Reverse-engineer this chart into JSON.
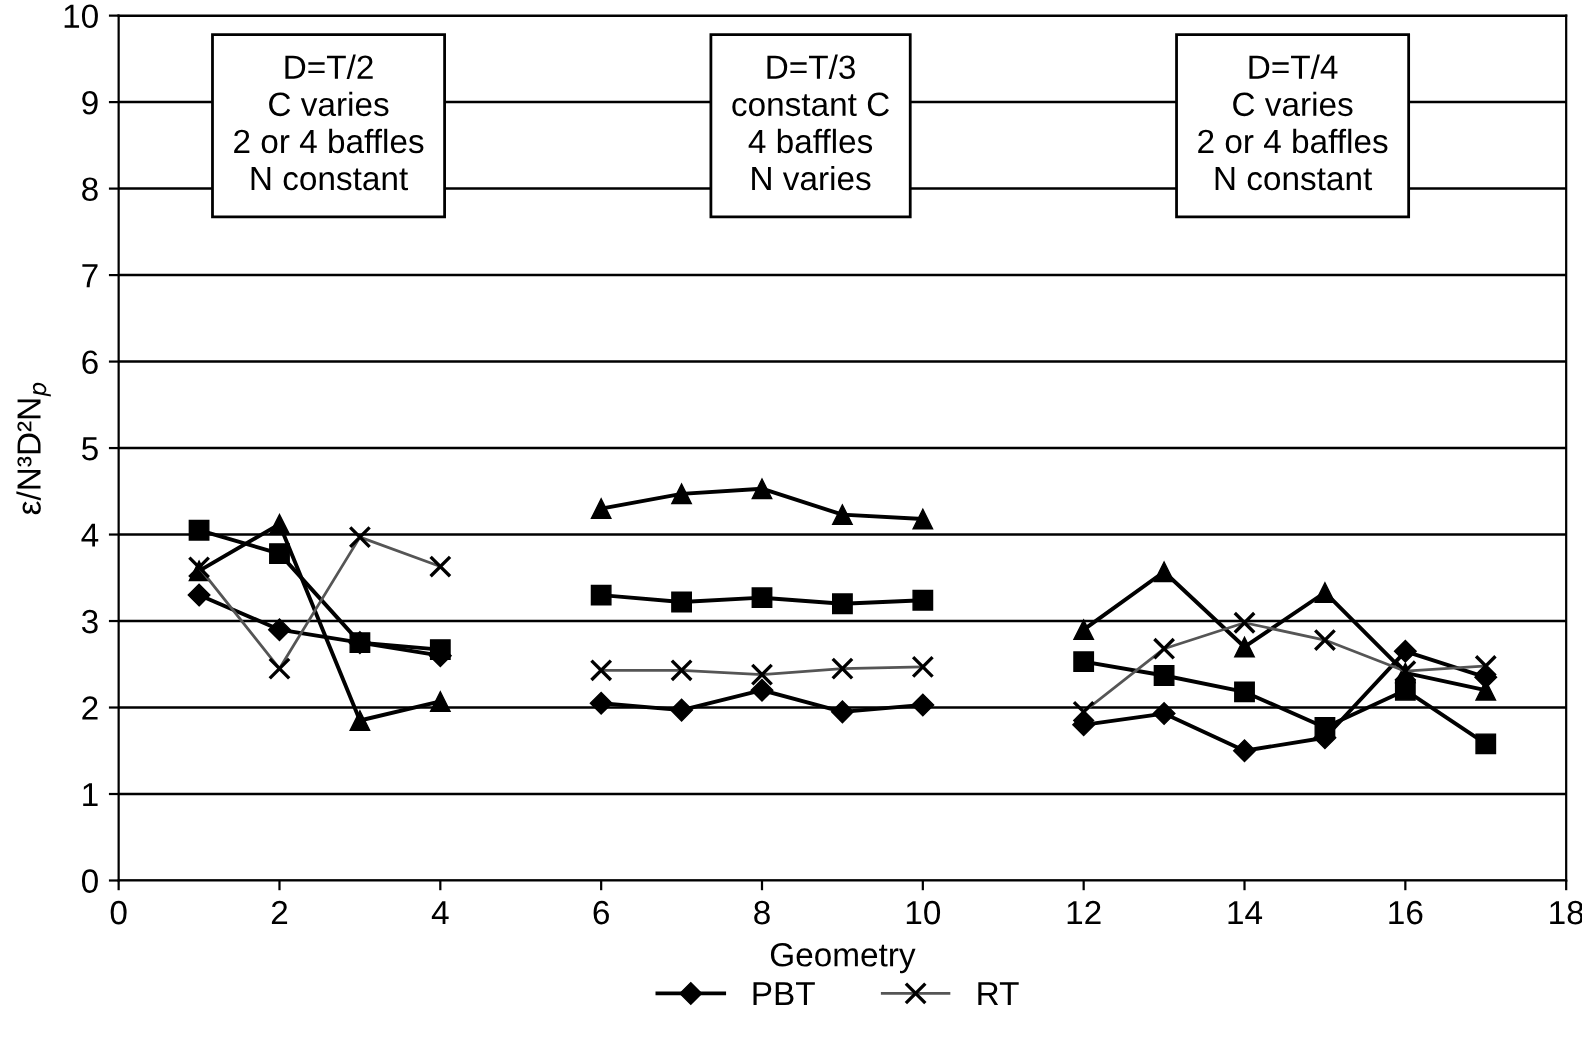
{
  "chart_data": {
    "type": "line",
    "xlabel": "Geometry",
    "ylabel": "ε/N³D²N$_{p}$",
    "x": [
      1,
      2,
      3,
      4,
      5,
      6,
      7,
      8,
      9,
      10,
      11,
      12,
      13,
      14,
      15,
      16,
      17
    ],
    "series": [
      {
        "name": "PBT",
        "color": "#000000",
        "marker": "diamond",
        "values": [
          3.3,
          2.9,
          2.75,
          2.6,
          null,
          2.05,
          1.97,
          2.2,
          1.95,
          2.03,
          null,
          1.8,
          1.93,
          1.5,
          1.65,
          2.65,
          2.35
        ]
      },
      {
        "color": "#000000",
        "marker": "square",
        "values": [
          4.05,
          3.78,
          2.75,
          2.67,
          null,
          3.3,
          3.22,
          3.27,
          3.2,
          3.24,
          null,
          2.53,
          2.37,
          2.18,
          1.77,
          2.2,
          1.58
        ]
      },
      {
        "color": "#000000",
        "marker": "triangle",
        "values": [
          3.58,
          4.12,
          1.85,
          2.07,
          null,
          4.3,
          4.47,
          4.53,
          4.23,
          4.18,
          null,
          2.9,
          3.57,
          2.7,
          3.33,
          2.4,
          2.2
        ]
      },
      {
        "name": "RT",
        "color": "#555555",
        "marker": "cross",
        "values": [
          3.62,
          2.45,
          3.97,
          3.63,
          null,
          2.43,
          2.43,
          2.38,
          2.45,
          2.47,
          null,
          1.95,
          2.68,
          2.98,
          2.78,
          2.42,
          2.48
        ]
      }
    ],
    "annotations": [
      "D=T/2\nC varies\n2 or 4 baffles\nN constant",
      "D=T/3\nconstant C\n4 baffles\nN varies",
      "D=T/4\nC varies\n2 or 4 baffles\nN constant"
    ],
    "xlim": [
      0,
      18
    ],
    "xticks": [
      0,
      2,
      4,
      6,
      8,
      10,
      12,
      14,
      16,
      18
    ],
    "ylim": [
      0,
      10
    ],
    "yticks": [
      0,
      1,
      2,
      3,
      4,
      5,
      6,
      7,
      8,
      9,
      10
    ],
    "grid": "y",
    "legend": "bottom",
    "line_style": "solid"
  }
}
